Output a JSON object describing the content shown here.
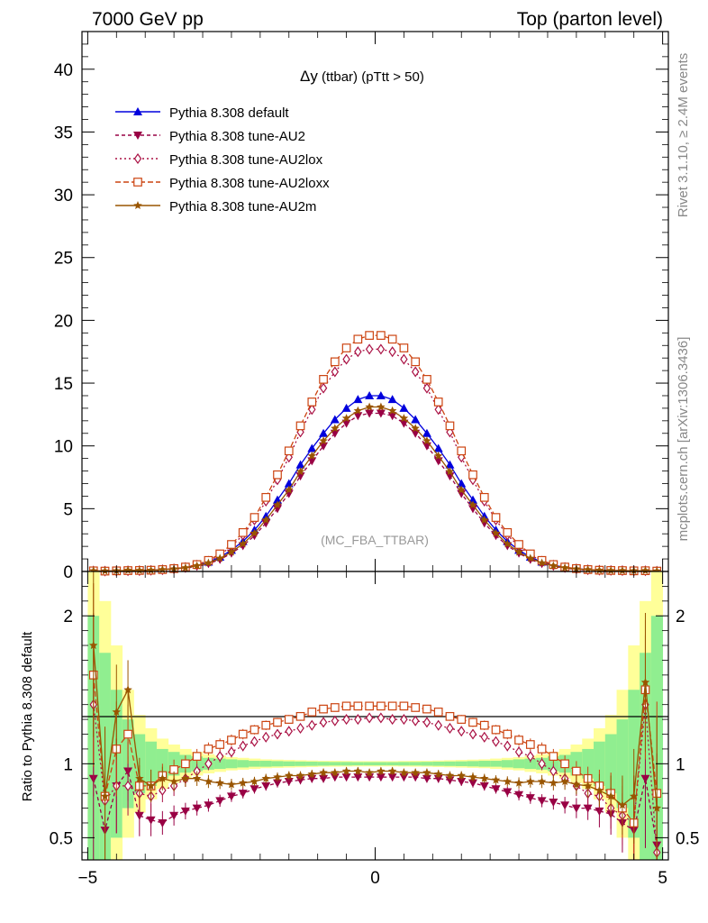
{
  "header": {
    "left": "7000 GeV pp",
    "right": "Top (parton level)"
  },
  "side_labels": {
    "rivet": "Rivet 3.1.10, ≥ 2.4M events",
    "mcplots": "mcplots.cern.ch [arXiv:1306.3436]"
  },
  "watermark": "(MC_FBA_TTBAR)",
  "colors": {
    "default": "#0000dd",
    "au2": "#990044",
    "au2lox": "#aa1144",
    "au2loxx": "#cc4411",
    "au2m": "#995500",
    "band_green": "#90ee90",
    "band_yellow": "#ffff99"
  },
  "chart_data": [
    {
      "type": "line",
      "title": "Δy (ttbar) (pTtt > 50)",
      "title_parts": {
        "symbol": "Δy",
        "rest": " (ttbar) (pTtt > 50)"
      },
      "xlim": [
        -5.1,
        5.1
      ],
      "ylim": [
        0,
        43
      ],
      "yticks": [
        "0",
        "5",
        "10",
        "15",
        "20",
        "25",
        "30",
        "35",
        "40"
      ],
      "legend_position": "top-left",
      "x": [
        -4.9,
        -4.7,
        -4.5,
        -4.3,
        -4.1,
        -3.9,
        -3.7,
        -3.5,
        -3.3,
        -3.1,
        -2.9,
        -2.7,
        -2.5,
        -2.3,
        -2.1,
        -1.9,
        -1.7,
        -1.5,
        -1.3,
        -1.1,
        -0.9,
        -0.7,
        -0.5,
        -0.3,
        -0.1,
        0.1,
        0.3,
        0.5,
        0.7,
        0.9,
        1.1,
        1.3,
        1.5,
        1.7,
        1.9,
        2.1,
        2.3,
        2.5,
        2.7,
        2.9,
        3.1,
        3.3,
        3.5,
        3.7,
        3.9,
        4.1,
        4.3,
        4.5,
        4.7,
        4.9
      ],
      "series": [
        {
          "name": "Pythia 8.308 default",
          "key": "default",
          "marker": "triangle-up",
          "dash": "",
          "values": [
            0.03,
            0.04,
            0.05,
            0.06,
            0.08,
            0.1,
            0.15,
            0.22,
            0.32,
            0.5,
            0.75,
            1.15,
            1.7,
            2.4,
            3.3,
            4.4,
            5.7,
            7.0,
            8.5,
            9.8,
            11.0,
            12.1,
            13.0,
            13.7,
            14.0,
            14.0,
            13.7,
            13.0,
            12.1,
            11.0,
            9.8,
            8.5,
            7.0,
            5.7,
            4.4,
            3.3,
            2.4,
            1.7,
            1.15,
            0.75,
            0.5,
            0.32,
            0.22,
            0.15,
            0.1,
            0.08,
            0.06,
            0.05,
            0.04,
            0.03
          ]
        },
        {
          "name": "Pythia 8.308 tune-AU2",
          "key": "au2",
          "marker": "triangle-down",
          "dash": "4,3",
          "values": [
            0.04,
            0.02,
            0.04,
            0.07,
            0.06,
            0.07,
            0.11,
            0.17,
            0.25,
            0.4,
            0.62,
            0.95,
            1.45,
            2.05,
            2.85,
            3.85,
            5.0,
            6.2,
            7.6,
            8.8,
            10.0,
            11.0,
            11.8,
            12.4,
            12.6,
            12.6,
            12.4,
            11.8,
            11.0,
            10.0,
            8.8,
            7.6,
            6.2,
            5.0,
            3.85,
            2.85,
            2.05,
            1.45,
            0.95,
            0.62,
            0.4,
            0.25,
            0.17,
            0.11,
            0.08,
            0.06,
            0.05,
            0.03,
            0.05,
            0.02
          ]
        },
        {
          "name": "Pythia 8.308 tune-AU2lox",
          "key": "au2lox",
          "marker": "diamond-open",
          "dash": "2,3",
          "values": [
            0.04,
            0.03,
            0.04,
            0.06,
            0.07,
            0.09,
            0.14,
            0.21,
            0.32,
            0.51,
            0.82,
            1.32,
            2.0,
            2.9,
            4.1,
            5.6,
            7.3,
            9.1,
            11.1,
            12.9,
            14.6,
            15.9,
            16.9,
            17.5,
            17.7,
            17.7,
            17.5,
            16.9,
            15.9,
            14.6,
            12.9,
            11.1,
            9.1,
            7.3,
            5.6,
            4.1,
            2.9,
            2.0,
            1.32,
            0.82,
            0.51,
            0.32,
            0.21,
            0.14,
            0.1,
            0.08,
            0.07,
            0.05,
            0.06,
            0.02
          ]
        },
        {
          "name": "Pythia 8.308 tune-AU2loxx",
          "key": "au2loxx",
          "marker": "square-open",
          "dash": "6,3",
          "values": [
            0.05,
            0.03,
            0.05,
            0.07,
            0.08,
            0.1,
            0.15,
            0.23,
            0.35,
            0.55,
            0.88,
            1.4,
            2.15,
            3.1,
            4.3,
            5.9,
            7.7,
            9.6,
            11.6,
            13.5,
            15.3,
            16.7,
            17.8,
            18.5,
            18.8,
            18.8,
            18.5,
            17.8,
            16.7,
            15.3,
            13.5,
            11.6,
            9.6,
            7.7,
            5.9,
            4.3,
            3.1,
            2.15,
            1.4,
            0.88,
            0.55,
            0.35,
            0.23,
            0.15,
            0.1,
            0.08,
            0.07,
            0.05,
            0.06,
            0.03
          ]
        },
        {
          "name": "Pythia 8.308 tune-AU2m",
          "key": "au2m",
          "marker": "star",
          "dash": "",
          "values": [
            0.05,
            0.03,
            0.05,
            0.09,
            0.08,
            0.09,
            0.14,
            0.2,
            0.29,
            0.45,
            0.68,
            1.05,
            1.55,
            2.2,
            3.05,
            4.1,
            5.3,
            6.5,
            7.95,
            9.2,
            10.4,
            11.4,
            12.2,
            12.8,
            13.1,
            13.1,
            12.8,
            12.2,
            11.4,
            10.4,
            9.2,
            7.95,
            6.5,
            5.3,
            4.1,
            3.05,
            2.2,
            1.55,
            1.05,
            0.68,
            0.45,
            0.29,
            0.2,
            0.14,
            0.09,
            0.07,
            0.06,
            0.05,
            0.06,
            0.03
          ]
        }
      ]
    },
    {
      "type": "line",
      "ylabel": "Ratio to Pythia 8.308 default",
      "xlim": [
        -5.1,
        5.1
      ],
      "ylim": [
        0.35,
        2.3
      ],
      "yticks": [
        "0.5",
        "1",
        "2"
      ],
      "xticks": [
        "−5",
        "0",
        "5"
      ],
      "band_green_halfwidth": [
        1.0,
        0.75,
        0.5,
        0.3,
        0.2,
        0.15,
        0.1,
        0.08,
        0.06,
        0.05,
        0.04,
        0.035,
        0.03,
        0.025,
        0.02,
        0.02,
        0.018,
        0.016,
        0.015,
        0.014,
        0.013,
        0.012,
        0.012,
        0.011,
        0.011,
        0.011,
        0.011,
        0.012,
        0.012,
        0.013,
        0.014,
        0.015,
        0.016,
        0.018,
        0.02,
        0.02,
        0.025,
        0.03,
        0.035,
        0.04,
        0.05,
        0.06,
        0.08,
        0.1,
        0.15,
        0.2,
        0.3,
        0.5,
        0.75,
        1.0
      ],
      "band_yellow_halfwidth": [
        1.3,
        1.1,
        0.8,
        0.5,
        0.33,
        0.24,
        0.17,
        0.13,
        0.1,
        0.08,
        0.065,
        0.055,
        0.045,
        0.04,
        0.035,
        0.03,
        0.028,
        0.026,
        0.024,
        0.022,
        0.02,
        0.02,
        0.019,
        0.018,
        0.018,
        0.018,
        0.018,
        0.019,
        0.02,
        0.02,
        0.022,
        0.024,
        0.026,
        0.028,
        0.03,
        0.035,
        0.04,
        0.045,
        0.055,
        0.065,
        0.08,
        0.1,
        0.13,
        0.17,
        0.24,
        0.33,
        0.5,
        0.8,
        1.1,
        1.3
      ],
      "series": [
        {
          "name": "Pythia 8.308 tune-AU2",
          "key": "au2",
          "marker": "triangle-down",
          "dash": "4,3",
          "values": [
            0.9,
            0.55,
            0.85,
            0.95,
            0.65,
            0.62,
            0.6,
            0.65,
            0.68,
            0.7,
            0.72,
            0.75,
            0.78,
            0.8,
            0.83,
            0.85,
            0.87,
            0.88,
            0.89,
            0.9,
            0.9,
            0.91,
            0.91,
            0.91,
            0.91,
            0.91,
            0.91,
            0.91,
            0.91,
            0.9,
            0.9,
            0.89,
            0.88,
            0.87,
            0.85,
            0.83,
            0.81,
            0.79,
            0.77,
            0.75,
            0.74,
            0.72,
            0.7,
            0.7,
            0.68,
            0.66,
            0.6,
            0.55,
            0.9,
            0.45
          ]
        },
        {
          "name": "Pythia 8.308 tune-AU2lox",
          "key": "au2lox",
          "marker": "diamond-open",
          "dash": "2,3",
          "values": [
            1.4,
            0.75,
            0.85,
            0.85,
            0.8,
            0.78,
            0.82,
            0.85,
            0.9,
            0.95,
            1.0,
            1.05,
            1.08,
            1.12,
            1.15,
            1.18,
            1.2,
            1.22,
            1.24,
            1.26,
            1.28,
            1.29,
            1.3,
            1.3,
            1.31,
            1.31,
            1.3,
            1.3,
            1.29,
            1.28,
            1.26,
            1.24,
            1.22,
            1.2,
            1.18,
            1.15,
            1.12,
            1.08,
            1.05,
            1.0,
            0.95,
            0.9,
            0.85,
            0.8,
            0.78,
            0.7,
            0.65,
            0.6,
            1.4,
            0.4
          ]
        },
        {
          "name": "Pythia 8.308 tune-AU2loxx",
          "key": "au2loxx",
          "marker": "square-open",
          "dash": "6,3",
          "values": [
            1.6,
            0.78,
            1.1,
            1.2,
            0.85,
            0.85,
            0.92,
            0.96,
            1.0,
            1.05,
            1.1,
            1.13,
            1.16,
            1.2,
            1.23,
            1.26,
            1.28,
            1.3,
            1.32,
            1.35,
            1.37,
            1.38,
            1.39,
            1.39,
            1.39,
            1.39,
            1.39,
            1.39,
            1.38,
            1.37,
            1.35,
            1.32,
            1.3,
            1.28,
            1.26,
            1.23,
            1.2,
            1.16,
            1.13,
            1.1,
            1.05,
            1.0,
            0.95,
            0.9,
            0.85,
            0.8,
            0.7,
            0.6,
            1.5,
            0.8
          ]
        },
        {
          "name": "Pythia 8.308 tune-AU2m",
          "key": "au2m",
          "marker": "star",
          "dash": "",
          "values": [
            1.8,
            0.78,
            1.35,
            1.5,
            0.9,
            0.85,
            0.9,
            0.88,
            0.9,
            0.9,
            0.88,
            0.87,
            0.86,
            0.87,
            0.88,
            0.9,
            0.91,
            0.92,
            0.92,
            0.93,
            0.94,
            0.94,
            0.95,
            0.95,
            0.94,
            0.95,
            0.95,
            0.94,
            0.94,
            0.94,
            0.93,
            0.92,
            0.92,
            0.91,
            0.9,
            0.89,
            0.88,
            0.87,
            0.88,
            0.88,
            0.87,
            0.88,
            0.86,
            0.85,
            0.82,
            0.78,
            0.72,
            0.78,
            1.55,
            0.7
          ]
        }
      ]
    }
  ]
}
